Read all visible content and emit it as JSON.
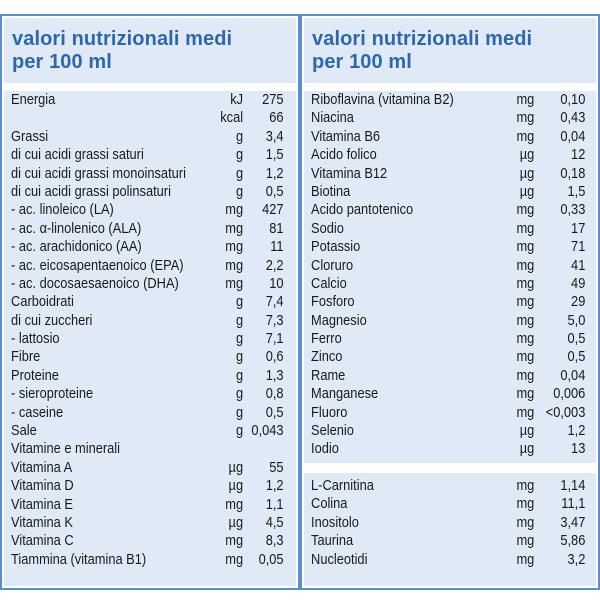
{
  "left": {
    "title_line1": "valori nutrizionali medi",
    "title_line2": "per 100 ml",
    "rows": [
      {
        "name": "Energia",
        "unit": "kJ",
        "value": "275"
      },
      {
        "name": "",
        "unit": "kcal",
        "value": "66"
      },
      {
        "name": "Grassi",
        "unit": "g",
        "value": "3,4"
      },
      {
        "name": "di cui acidi grassi saturi",
        "unit": "g",
        "value": "1,5"
      },
      {
        "name": "di cui acidi grassi monoinsaturi",
        "unit": "g",
        "value": "1,2"
      },
      {
        "name": "di cui acidi grassi polinsaturi",
        "unit": "g",
        "value": "0,5"
      },
      {
        "name": "- ac. linoleico (LA)",
        "unit": "mg",
        "value": "427"
      },
      {
        "name": "- ac. α-linolenico (ALA)",
        "unit": "mg",
        "value": "81"
      },
      {
        "name": "- ac. arachidonico (AA)",
        "unit": "mg",
        "value": "11"
      },
      {
        "name": "- ac. eicosapentaenoico (EPA)",
        "unit": "mg",
        "value": "2,2"
      },
      {
        "name": "- ac. docosaesaenoico (DHA)",
        "unit": "mg",
        "value": "10"
      },
      {
        "name": "Carboidrati",
        "unit": "g",
        "value": "7,4"
      },
      {
        "name": "di cui zuccheri",
        "unit": "g",
        "value": "7,3"
      },
      {
        "name": "- lattosio",
        "unit": "g",
        "value": "7,1"
      },
      {
        "name": "Fibre",
        "unit": "g",
        "value": "0,6"
      },
      {
        "name": "Proteine",
        "unit": "g",
        "value": "1,3"
      },
      {
        "name": "- sieroproteine",
        "unit": "g",
        "value": "0,8"
      },
      {
        "name": "- caseine",
        "unit": "g",
        "value": "0,5"
      },
      {
        "name": "Sale",
        "unit": "g",
        "value": "0,043"
      },
      {
        "name": "Vitamine e minerali",
        "unit": "",
        "value": ""
      },
      {
        "name": "Vitamina A",
        "unit": "µg",
        "value": "55"
      },
      {
        "name": "Vitamina D",
        "unit": "µg",
        "value": "1,2"
      },
      {
        "name": "Vitamina E",
        "unit": "mg",
        "value": "1,1"
      },
      {
        "name": "Vitamina K",
        "unit": "µg",
        "value": "4,5"
      },
      {
        "name": "Vitamina C",
        "unit": "mg",
        "value": "8,3"
      },
      {
        "name": "Tiammina (vitamina B1)",
        "unit": "mg",
        "value": "0,05"
      }
    ]
  },
  "right": {
    "title_line1": "valori nutrizionali medi",
    "title_line2": "per 100 ml",
    "rows": [
      {
        "name": "Riboflavina (vitamina B2)",
        "unit": "mg",
        "value": "0,10"
      },
      {
        "name": "Niacina",
        "unit": "mg",
        "value": "0,43"
      },
      {
        "name": "Vitamina B6",
        "unit": "mg",
        "value": "0,04"
      },
      {
        "name": "Acido folico",
        "unit": "µg",
        "value": "12"
      },
      {
        "name": "Vitamina B12",
        "unit": "µg",
        "value": "0,18"
      },
      {
        "name": "Biotina",
        "unit": "µg",
        "value": "1,5"
      },
      {
        "name": "Acido pantotenico",
        "unit": "mg",
        "value": "0,33"
      },
      {
        "name": "Sodio",
        "unit": "mg",
        "value": "17"
      },
      {
        "name": "Potassio",
        "unit": "mg",
        "value": "71"
      },
      {
        "name": "Cloruro",
        "unit": "mg",
        "value": "41"
      },
      {
        "name": "Calcio",
        "unit": "mg",
        "value": "49"
      },
      {
        "name": "Fosforo",
        "unit": "mg",
        "value": "29"
      },
      {
        "name": "Magnesio",
        "unit": "mg",
        "value": "5,0"
      },
      {
        "name": "Ferro",
        "unit": "mg",
        "value": "0,5"
      },
      {
        "name": "Zinco",
        "unit": "mg",
        "value": "0,5"
      },
      {
        "name": "Rame",
        "unit": "mg",
        "value": "0,04"
      },
      {
        "name": "Manganese",
        "unit": "mg",
        "value": "0,006"
      },
      {
        "name": "Fluoro",
        "unit": "mg",
        "value": "<0,003"
      },
      {
        "name": "Selenio",
        "unit": "µg",
        "value": "1,2"
      },
      {
        "name": "Iodio",
        "unit": "µg",
        "value": "13"
      }
    ],
    "rows2": [
      {
        "name": "L-Carnitina",
        "unit": "mg",
        "value": "1,14"
      },
      {
        "name": "Colina",
        "unit": "mg",
        "value": "11,1"
      },
      {
        "name": "Inositolo",
        "unit": "mg",
        "value": "3,47"
      },
      {
        "name": "Taurina",
        "unit": "mg",
        "value": "5,86"
      },
      {
        "name": "Nucleotidi",
        "unit": "mg",
        "value": "3,2"
      }
    ]
  },
  "colors": {
    "border": "#5b8fcb",
    "panel_bg": "#dfeaf6",
    "title": "#2d68ad",
    "text": "#1a1a1a"
  }
}
